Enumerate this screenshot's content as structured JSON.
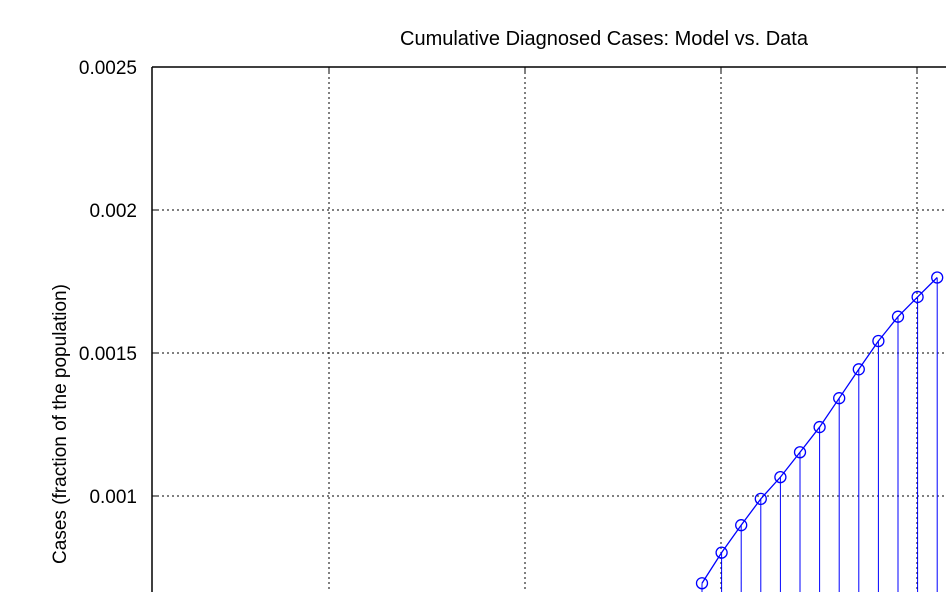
{
  "chart_data": {
    "type": "line",
    "title": "Cumulative Diagnosed Cases: Model vs. Data",
    "xlabel": "",
    "ylabel": "Cases (fraction of the population)",
    "ylim": [
      0.0005,
      0.0025
    ],
    "yticks": [
      0.001,
      0.0015,
      0.002,
      0.0025
    ],
    "ytick_labels": [
      "0.001",
      "0.0015",
      "0.002",
      "0.0025"
    ],
    "grid": true,
    "series": [
      {
        "color": "#0000ff",
        "style": "stem-with-circle-markers",
        "x": [
          0,
          1,
          2,
          3,
          4,
          5,
          6,
          7,
          8,
          9,
          10,
          11,
          12
        ],
        "values": [
          0.000695,
          0.000802,
          0.000898,
          0.00099,
          0.001066,
          0.001153,
          0.001241,
          0.001342,
          0.001443,
          0.001542,
          0.001627,
          0.001696,
          0.001764
        ]
      }
    ]
  }
}
